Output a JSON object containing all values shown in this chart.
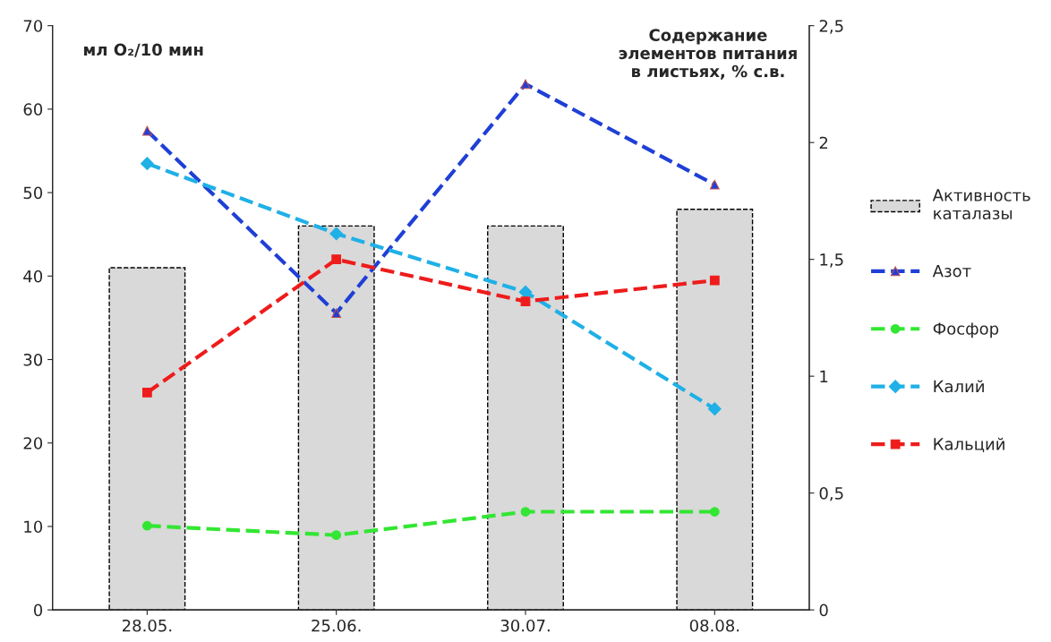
{
  "chart_data": {
    "type": "bar",
    "ylabel": "мл O₂/10 мин",
    "y2label": "Содержание\nэлементов питания\nв листьях, % с.в.",
    "categories": [
      "28.05.",
      "25.06.",
      "30.07.",
      "08.08."
    ],
    "ylim": [
      0,
      70
    ],
    "yticks": [
      0,
      10,
      20,
      30,
      40,
      50,
      60,
      70
    ],
    "y2lim": [
      0,
      2.5
    ],
    "y2ticks": [
      0,
      {
        "value": 0.5,
        "label": "0,5"
      },
      1,
      {
        "value": 1.5,
        "label": "1,5"
      },
      2,
      {
        "value": 2.5,
        "label": "2,5"
      }
    ],
    "grid": false,
    "legend": "right",
    "line_style": "dashed",
    "series": [
      {
        "name": "Активность\nкаталазы",
        "color": "#d9d9d9",
        "values": [
          41,
          46,
          46,
          48
        ]
      },
      {
        "name": "Азот",
        "type": "line",
        "axis": "y2",
        "color": "#1f3fd6",
        "marker": "triangle",
        "values": [
          2.05,
          1.27,
          2.25,
          1.82
        ]
      },
      {
        "name": "Фосфор",
        "type": "line",
        "axis": "y2",
        "color": "#33e633",
        "marker": "circle",
        "values": [
          0.36,
          0.32,
          0.42,
          0.42
        ]
      },
      {
        "name": "Калий",
        "type": "line",
        "axis": "y2",
        "color": "#1fb0e6",
        "marker": "diamond",
        "values": [
          1.91,
          1.61,
          1.36,
          0.86
        ]
      },
      {
        "name": "Кальций",
        "type": "line",
        "axis": "y2",
        "color": "#ee1c1c",
        "marker": "square",
        "values": [
          0.93,
          1.5,
          1.32,
          1.41
        ]
      }
    ]
  }
}
